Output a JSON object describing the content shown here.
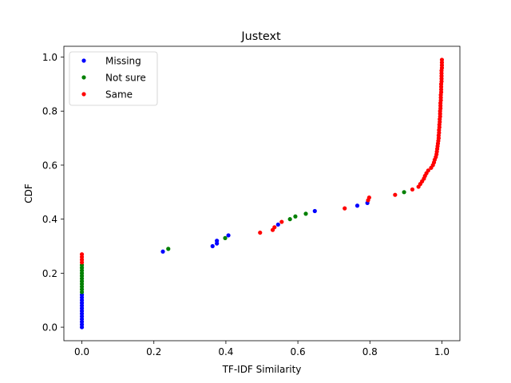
{
  "chart_data": {
    "type": "scatter",
    "title": "Justext",
    "xlabel": "TF-IDF Similarity",
    "ylabel": "CDF",
    "xlim": [
      -0.05,
      1.05
    ],
    "ylim": [
      -0.05,
      1.04
    ],
    "xticks": [
      0.0,
      0.2,
      0.4,
      0.6,
      0.8,
      1.0
    ],
    "xtick_labels": [
      "0.0",
      "0.2",
      "0.4",
      "0.6",
      "0.8",
      "1.0"
    ],
    "yticks": [
      0.0,
      0.2,
      0.4,
      0.6,
      0.8,
      1.0
    ],
    "ytick_labels": [
      "0.0",
      "0.2",
      "0.4",
      "0.6",
      "0.8",
      "1.0"
    ],
    "grid": false,
    "legend_position": "top-left",
    "series": [
      {
        "name": "Missing",
        "color": "#0000ff",
        "points": [
          [
            0.0,
            0.0
          ],
          [
            0.0,
            0.01
          ],
          [
            0.0,
            0.02
          ],
          [
            0.0,
            0.03
          ],
          [
            0.0,
            0.04
          ],
          [
            0.0,
            0.05
          ],
          [
            0.0,
            0.06
          ],
          [
            0.0,
            0.07
          ],
          [
            0.0,
            0.08
          ],
          [
            0.0,
            0.09
          ],
          [
            0.0,
            0.1
          ],
          [
            0.0,
            0.11
          ],
          [
            0.0,
            0.12
          ],
          [
            0.225,
            0.28
          ],
          [
            0.363,
            0.3
          ],
          [
            0.375,
            0.31
          ],
          [
            0.375,
            0.32
          ],
          [
            0.407,
            0.34
          ],
          [
            0.545,
            0.38
          ],
          [
            0.647,
            0.43
          ],
          [
            0.765,
            0.45
          ],
          [
            0.793,
            0.46
          ]
        ]
      },
      {
        "name": "Not sure",
        "color": "#008000",
        "points": [
          [
            0.0,
            0.13
          ],
          [
            0.0,
            0.14
          ],
          [
            0.0,
            0.15
          ],
          [
            0.0,
            0.16
          ],
          [
            0.0,
            0.17
          ],
          [
            0.0,
            0.18
          ],
          [
            0.0,
            0.19
          ],
          [
            0.0,
            0.2
          ],
          [
            0.0,
            0.21
          ],
          [
            0.0,
            0.22
          ],
          [
            0.0,
            0.23
          ],
          [
            0.24,
            0.29
          ],
          [
            0.398,
            0.33
          ],
          [
            0.578,
            0.4
          ],
          [
            0.593,
            0.41
          ],
          [
            0.622,
            0.42
          ],
          [
            0.895,
            0.5
          ]
        ]
      },
      {
        "name": "Same",
        "color": "#ff0000",
        "points": [
          [
            0.0,
            0.24
          ],
          [
            0.0,
            0.25
          ],
          [
            0.0,
            0.26
          ],
          [
            0.0,
            0.27
          ],
          [
            0.495,
            0.35
          ],
          [
            0.53,
            0.36
          ],
          [
            0.535,
            0.37
          ],
          [
            0.555,
            0.39
          ],
          [
            0.73,
            0.44
          ],
          [
            0.795,
            0.47
          ],
          [
            0.798,
            0.48
          ],
          [
            0.87,
            0.49
          ],
          [
            0.918,
            0.51
          ],
          [
            0.935,
            0.52
          ],
          [
            0.94,
            0.53
          ],
          [
            0.945,
            0.54
          ],
          [
            0.95,
            0.55
          ],
          [
            0.953,
            0.56
          ],
          [
            0.957,
            0.57
          ],
          [
            0.962,
            0.58
          ],
          [
            0.97,
            0.59
          ],
          [
            0.975,
            0.6
          ],
          [
            0.978,
            0.61
          ],
          [
            0.98,
            0.62
          ],
          [
            0.983,
            0.63
          ],
          [
            0.985,
            0.64
          ],
          [
            0.986,
            0.65
          ],
          [
            0.987,
            0.66
          ],
          [
            0.988,
            0.67
          ],
          [
            0.989,
            0.68
          ],
          [
            0.99,
            0.69
          ],
          [
            0.991,
            0.7
          ],
          [
            0.991,
            0.71
          ],
          [
            0.992,
            0.72
          ],
          [
            0.992,
            0.73
          ],
          [
            0.993,
            0.74
          ],
          [
            0.993,
            0.75
          ],
          [
            0.994,
            0.76
          ],
          [
            0.994,
            0.77
          ],
          [
            0.995,
            0.78
          ],
          [
            0.995,
            0.79
          ],
          [
            0.995,
            0.8
          ],
          [
            0.996,
            0.81
          ],
          [
            0.996,
            0.82
          ],
          [
            0.996,
            0.83
          ],
          [
            0.997,
            0.84
          ],
          [
            0.997,
            0.85
          ],
          [
            0.997,
            0.86
          ],
          [
            0.998,
            0.87
          ],
          [
            0.998,
            0.88
          ],
          [
            0.998,
            0.89
          ],
          [
            0.998,
            0.9
          ],
          [
            0.999,
            0.91
          ],
          [
            0.999,
            0.92
          ],
          [
            0.999,
            0.93
          ],
          [
            0.999,
            0.94
          ],
          [
            0.999,
            0.95
          ],
          [
            1.0,
            0.96
          ],
          [
            1.0,
            0.97
          ],
          [
            1.0,
            0.98
          ],
          [
            1.0,
            0.99
          ]
        ]
      }
    ]
  }
}
